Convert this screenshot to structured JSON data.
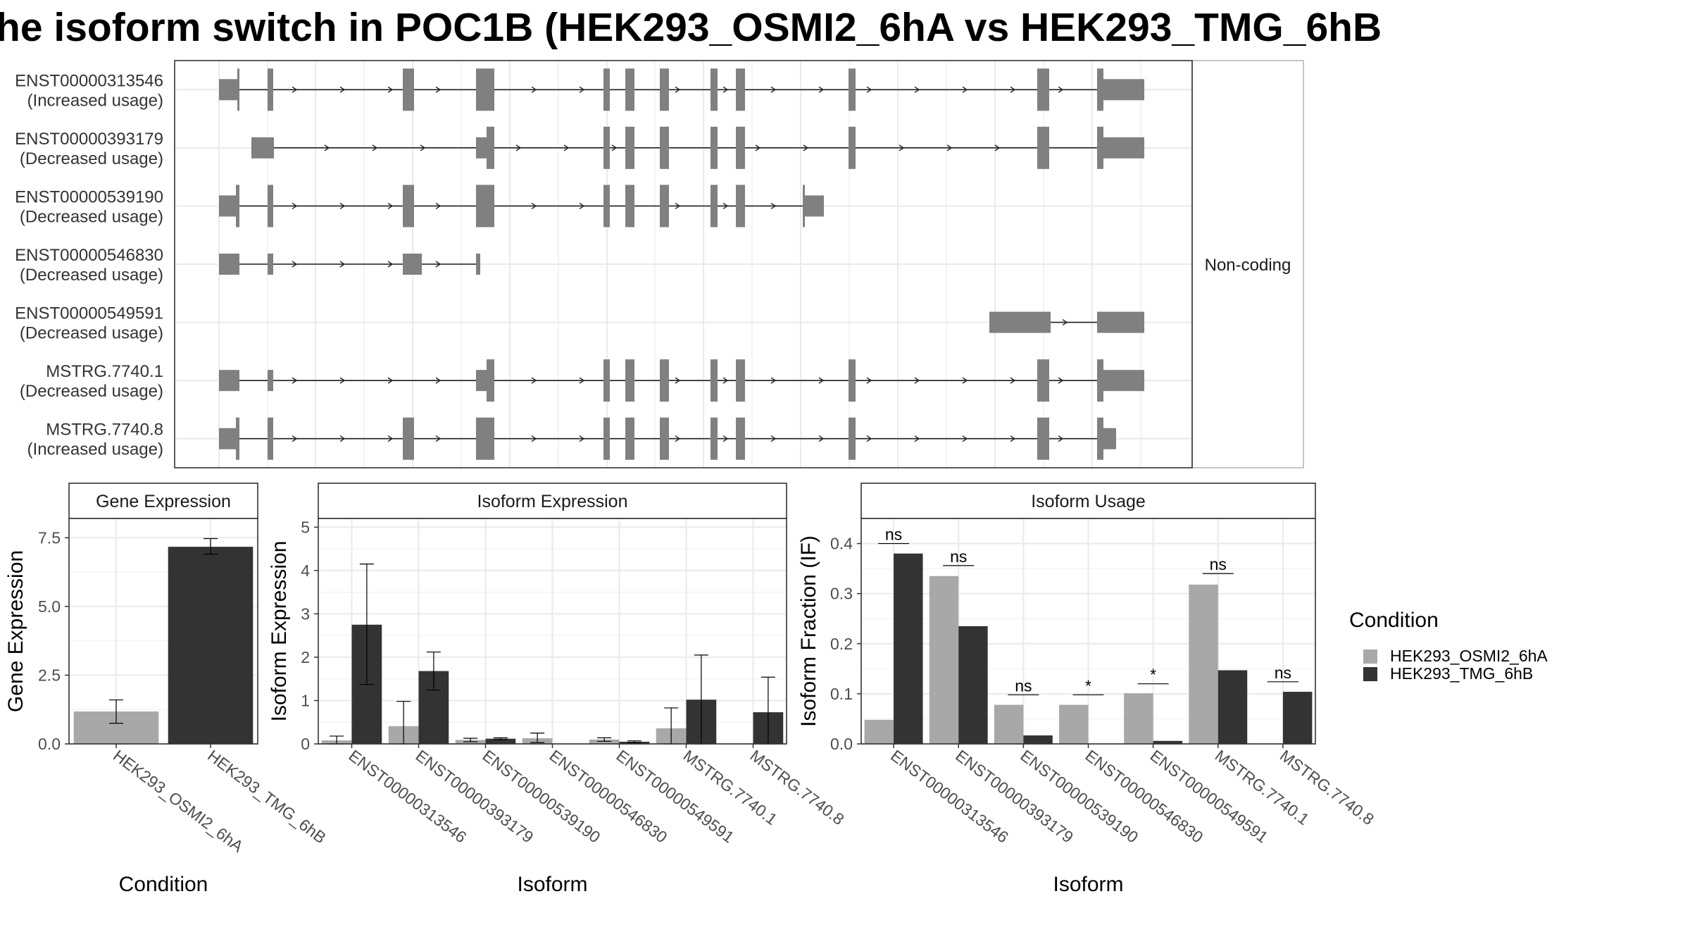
{
  "figure": {
    "title": "he isoform switch in POC1B (HEK293_OSMI2_6hA vs HEK293_TMG_6hB"
  },
  "colors": {
    "osmi": "#a8a8a8",
    "tmg": "#333333",
    "structure": "#808080",
    "grid": "#ebebeb",
    "panel_border": "#333333",
    "strip_bg": "#ffffff"
  },
  "chart_data": [
    {
      "type": "gene-structure",
      "transcripts": [
        {
          "name": "ENST00000313546",
          "usage": "(Increased usage)"
        },
        {
          "name": "ENST00000393179",
          "usage": "(Decreased usage)"
        },
        {
          "name": "ENST00000539190",
          "usage": "(Decreased usage)"
        },
        {
          "name": "ENST00000546830",
          "usage": "(Decreased usage)"
        },
        {
          "name": "ENST00000549591",
          "usage": "(Decreased usage)"
        },
        {
          "name": "MSTRG.7740.1",
          "usage": "(Decreased usage)"
        },
        {
          "name": "MSTRG.7740.8",
          "usage": "(Increased usage)"
        }
      ],
      "facet_label": "Non-coding"
    },
    {
      "type": "bar",
      "title": "Gene Expression",
      "xlabel": "Condition",
      "ylabel": "Gene Expression",
      "ylim": [
        0,
        8.2
      ],
      "yticks": [
        "0.0",
        "2.5",
        "5.0",
        "7.5"
      ],
      "categories": [
        "HEK293_OSMI2_6hA",
        "HEK293_TMG_6hB"
      ],
      "values": [
        1.18,
        7.17
      ],
      "errors": [
        [
          0.75,
          1.6
        ],
        [
          6.9,
          7.47
        ]
      ]
    },
    {
      "type": "bar",
      "title": "Isoform Expression",
      "xlabel": "Isoform",
      "ylabel": "Isoform Expression",
      "ylim": [
        0,
        5.2
      ],
      "yticks": [
        "0",
        "1",
        "2",
        "3",
        "4",
        "5"
      ],
      "categories": [
        "ENST00000313546",
        "ENST00000393179",
        "ENST00000539190",
        "ENST00000546830",
        "ENST00000549591",
        "MSTRG.7740.1",
        "MSTRG.7740.8"
      ],
      "series": [
        {
          "name": "HEK293_OSMI2_6hA",
          "values": [
            0.08,
            0.41,
            0.09,
            0.13,
            0.1,
            0.36,
            0.0
          ],
          "errors": [
            [
              0,
              0.18
            ],
            [
              0,
              0.98
            ],
            [
              0.05,
              0.13
            ],
            [
              0.03,
              0.25
            ],
            [
              0.06,
              0.14
            ],
            [
              0,
              0.83
            ],
            [
              0,
              0
            ]
          ]
        },
        {
          "name": "HEK293_TMG_6hB",
          "values": [
            2.75,
            1.68,
            0.12,
            0.0,
            0.05,
            1.02,
            0.73
          ],
          "errors": [
            [
              1.37,
              4.15
            ],
            [
              1.24,
              2.12
            ],
            [
              0.1,
              0.14
            ],
            [
              0,
              0
            ],
            [
              0.03,
              0.07
            ],
            [
              0,
              2.05
            ],
            [
              0,
              1.54
            ]
          ]
        }
      ]
    },
    {
      "type": "bar",
      "title": "Isoform Usage",
      "xlabel": "Isoform",
      "ylabel": "Isoform Fraction (IF)",
      "ylim": [
        0,
        0.45
      ],
      "yticks": [
        "0.0",
        "0.1",
        "0.2",
        "0.3",
        "0.4"
      ],
      "categories": [
        "ENST00000313546",
        "ENST00000393179",
        "ENST00000539190",
        "ENST00000546830",
        "ENST00000549591",
        "MSTRG.7740.1",
        "MSTRG.7740.8"
      ],
      "series": [
        {
          "name": "HEK293_OSMI2_6hA",
          "values": [
            0.048,
            0.335,
            0.078,
            0.078,
            0.101,
            0.318,
            0.0
          ]
        },
        {
          "name": "HEK293_TMG_6hB",
          "values": [
            0.38,
            0.235,
            0.017,
            0.0,
            0.006,
            0.147,
            0.104
          ]
        }
      ],
      "significance": [
        "ns",
        "ns",
        "ns",
        "*",
        "*",
        "ns",
        "ns"
      ],
      "significance_level": [
        0.4,
        0.356,
        0.098,
        0.098,
        0.12,
        0.34,
        0.124
      ]
    }
  ],
  "legend": {
    "title": "Condition",
    "items": [
      {
        "label": "HEK293_OSMI2_6hA",
        "color": "#a8a8a8"
      },
      {
        "label": "HEK293_TMG_6hB",
        "color": "#333333"
      }
    ]
  }
}
